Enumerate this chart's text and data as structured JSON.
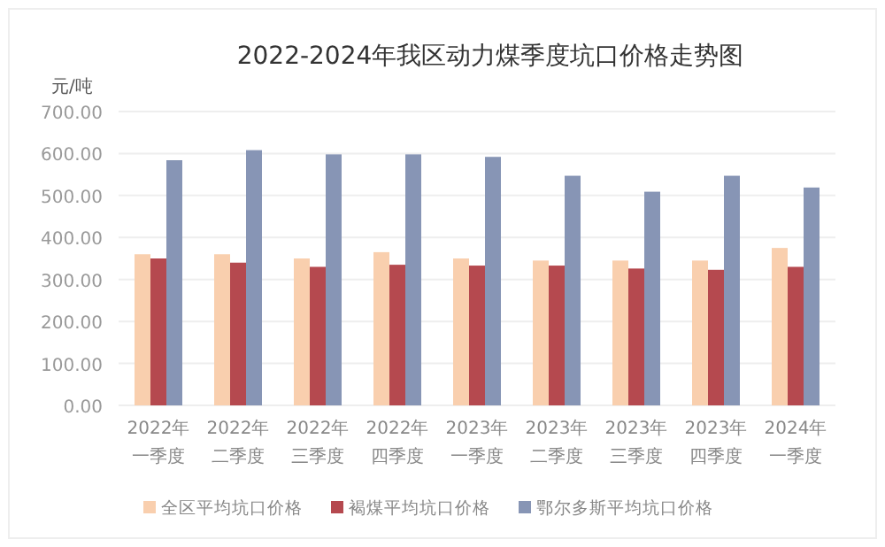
{
  "chart_data": {
    "type": "bar",
    "title": "2022-2024年我区动力煤季度坑口价格走势图",
    "ylabel": "元/吨",
    "categories": [
      "2022年一季度",
      "2022年二季度",
      "2022年三季度",
      "2022年四季度",
      "2023年一季度",
      "2023年二季度",
      "2023年三季度",
      "2023年四季度",
      "2024年一季度"
    ],
    "series": [
      {
        "name": "全区平均坑口价格",
        "color": "#f9cfae",
        "values": [
          360,
          360,
          350,
          365,
          350,
          345,
          345,
          345,
          375
        ]
      },
      {
        "name": "褐煤平均坑口价格",
        "color": "#b5494f",
        "values": [
          350,
          340,
          330,
          335,
          333,
          333,
          326,
          323,
          330
        ]
      },
      {
        "name": "鄂尔多斯平均坑口价格",
        "color": "#8795b5",
        "values": [
          584,
          608,
          598,
          598,
          592,
          547,
          509,
          547,
          519
        ]
      }
    ],
    "ylim": [
      0,
      700
    ],
    "yticks": [
      {
        "value": 0,
        "label": "0.00"
      },
      {
        "value": 100,
        "label": "100.00"
      },
      {
        "value": 200,
        "label": "200.00"
      },
      {
        "value": 300,
        "label": "300.00"
      },
      {
        "value": 400,
        "label": "400.00"
      },
      {
        "value": 500,
        "label": "500.00"
      },
      {
        "value": 600,
        "label": "600.00"
      },
      {
        "value": 700,
        "label": "700.00"
      }
    ],
    "grid": "y",
    "legend": "bottom"
  }
}
